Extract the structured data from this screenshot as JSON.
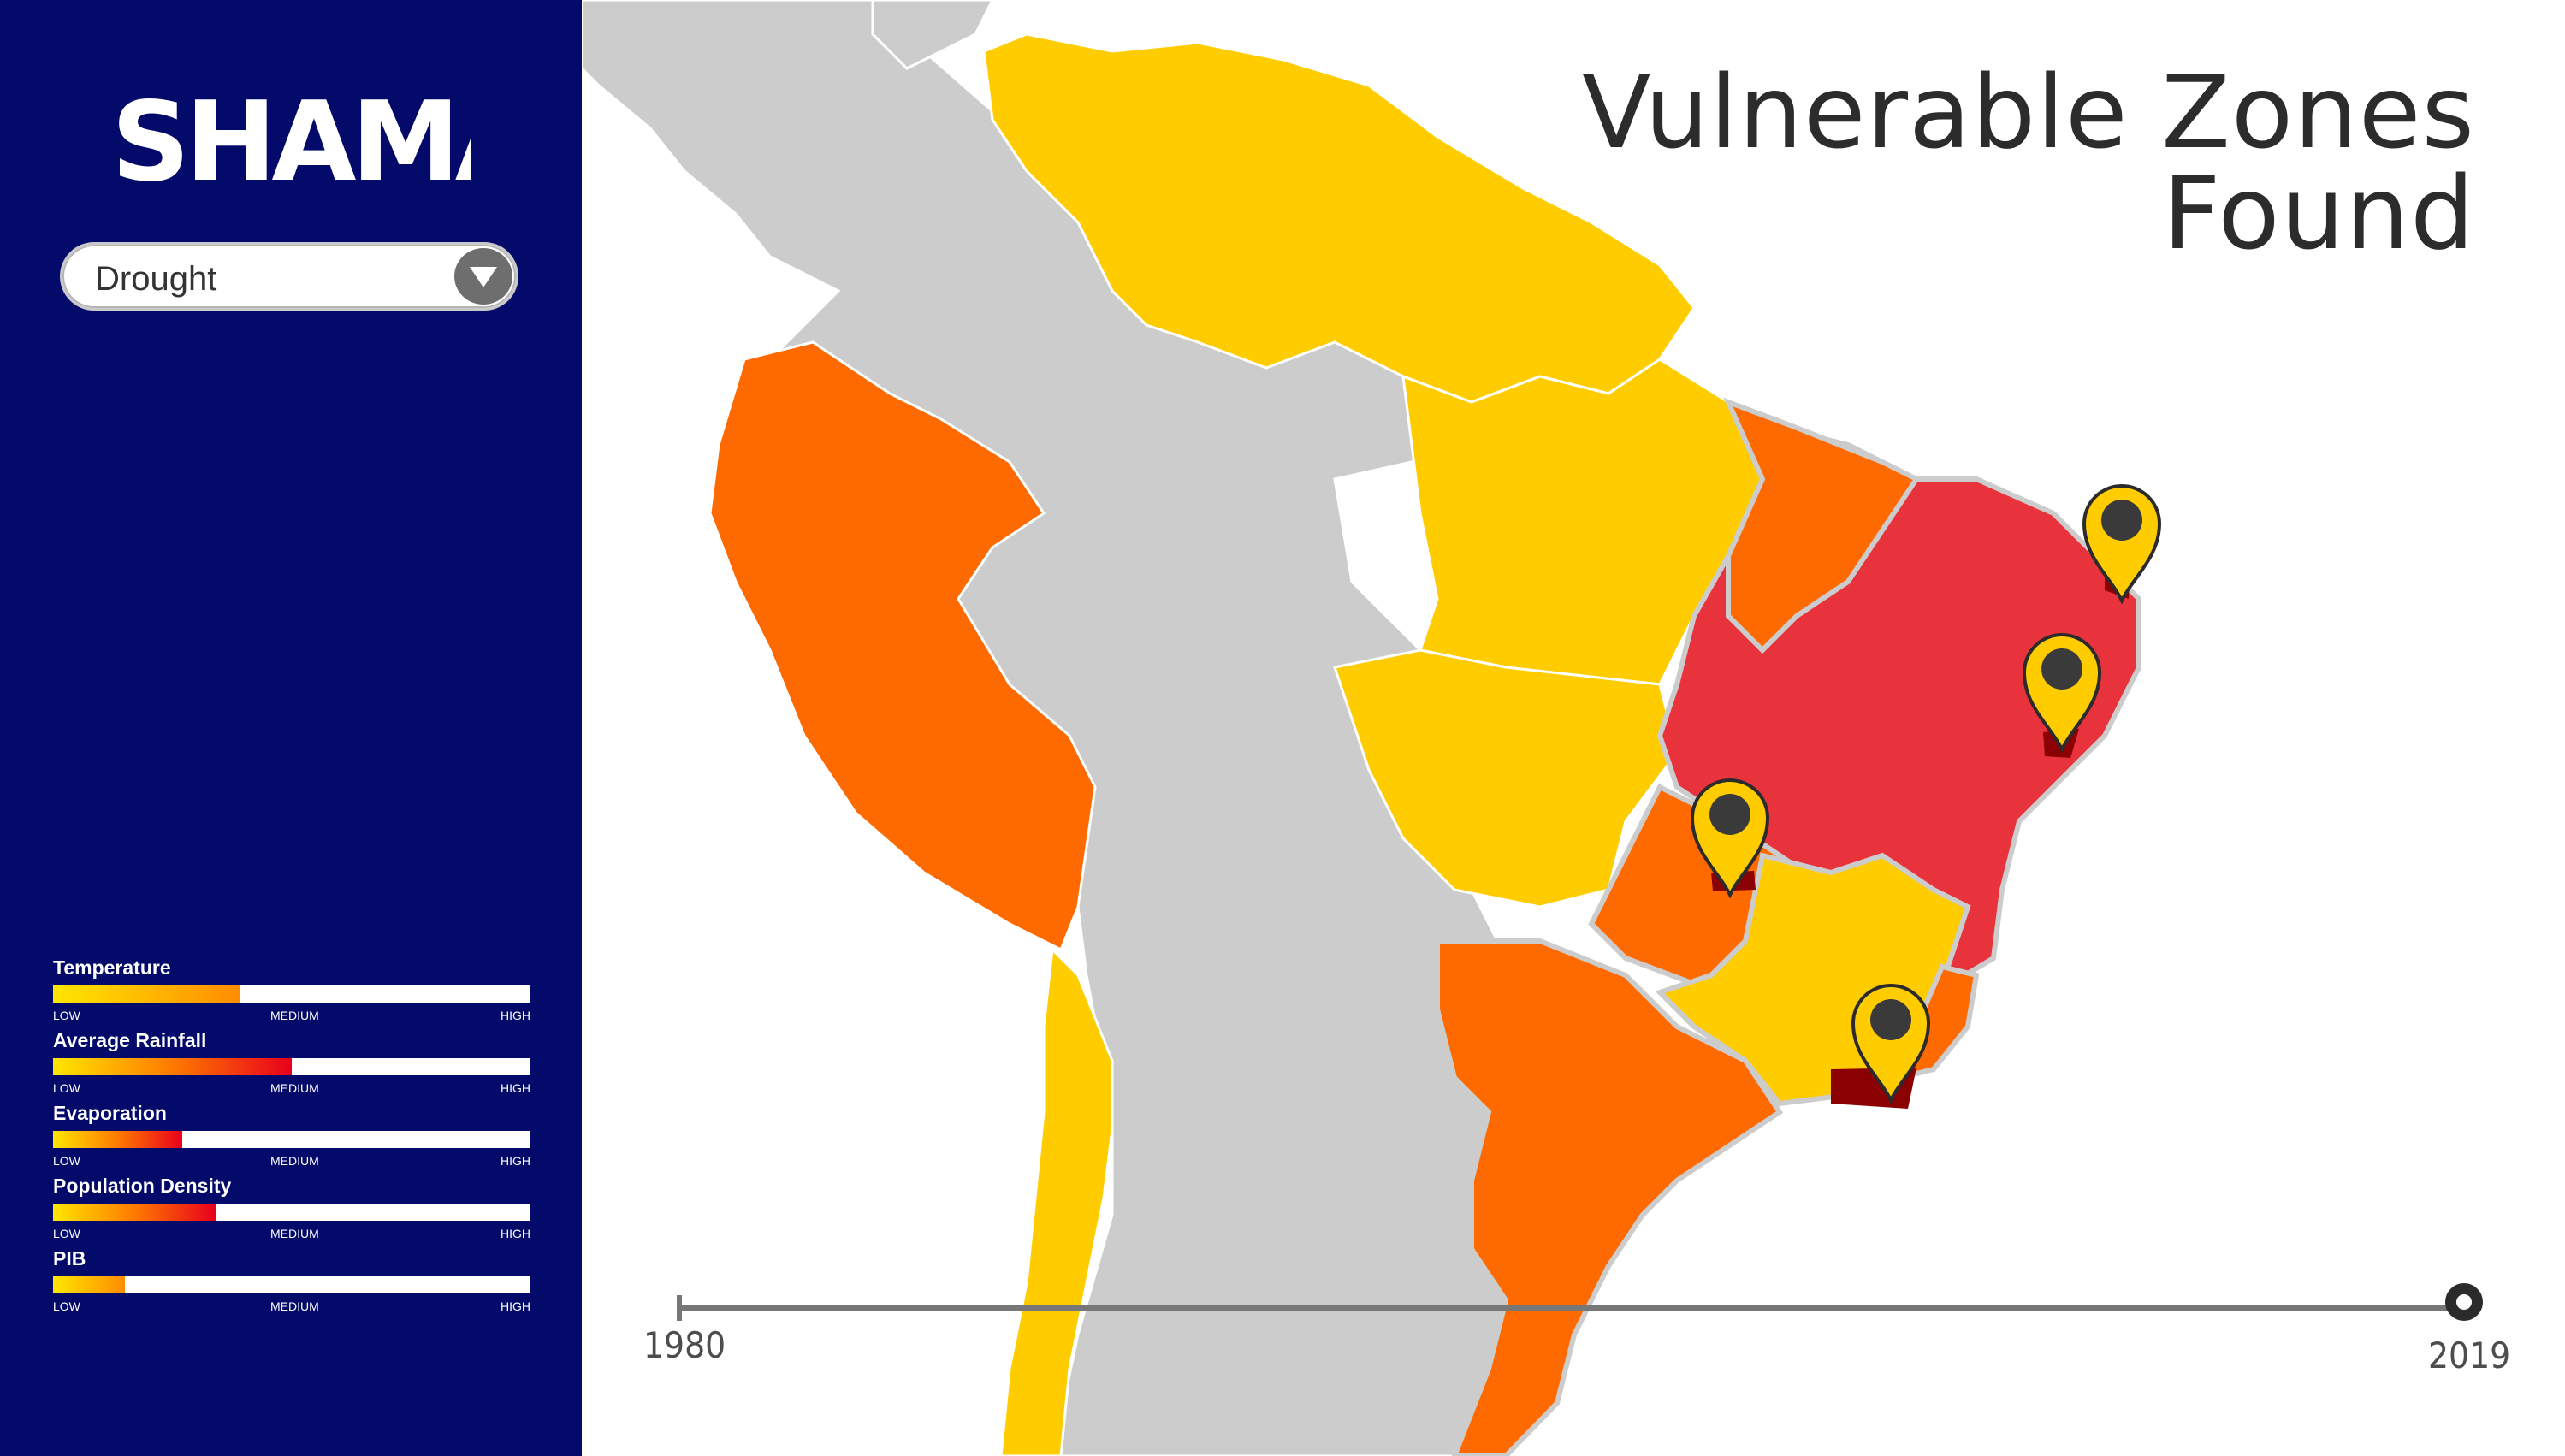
{
  "app": {
    "brand": "SHAMAN",
    "title_line1": "Vulnerable Zones",
    "title_line2": "Found"
  },
  "dropdown": {
    "value": "Drought",
    "icon": "chevron-down-icon"
  },
  "legend": {
    "items": [
      {
        "label": "Temperature",
        "level": 0.39,
        "gradient": "linear-gradient(90deg,#ffe600,#ff8c00)"
      },
      {
        "label": "Average Rainfall",
        "level": 0.5,
        "gradient": "linear-gradient(90deg,#ffe600,#ff7a00,#e8001c)"
      },
      {
        "label": "Evaporation",
        "level": 0.27,
        "gradient": "linear-gradient(90deg,#ffe600,#ff7a00,#e8001c)"
      },
      {
        "label": "Population Density",
        "level": 0.34,
        "gradient": "linear-gradient(90deg,#ffe600,#ff7a00,#e8001c)"
      },
      {
        "label": "PIB",
        "level": 0.15,
        "gradient": "linear-gradient(90deg,#ffe600,#ff8c00)"
      }
    ],
    "tick_low": "LOW",
    "tick_medium": "MEDIUM",
    "tick_high": "HIGH"
  },
  "timeline": {
    "start": "1980",
    "end": "2019"
  },
  "colors": {
    "sidebar": "#030a6a",
    "low": "#ffcc00",
    "medium": "#ff6a00",
    "high": "#e8323c",
    "critical": "#8b0000",
    "no_data": "#cccccc",
    "pin": "#ffcc00"
  },
  "pins": [
    {
      "name": "map-pin-northeast-coast"
    },
    {
      "name": "map-pin-east-coast"
    },
    {
      "name": "map-pin-interior"
    },
    {
      "name": "map-pin-southeast"
    }
  ]
}
